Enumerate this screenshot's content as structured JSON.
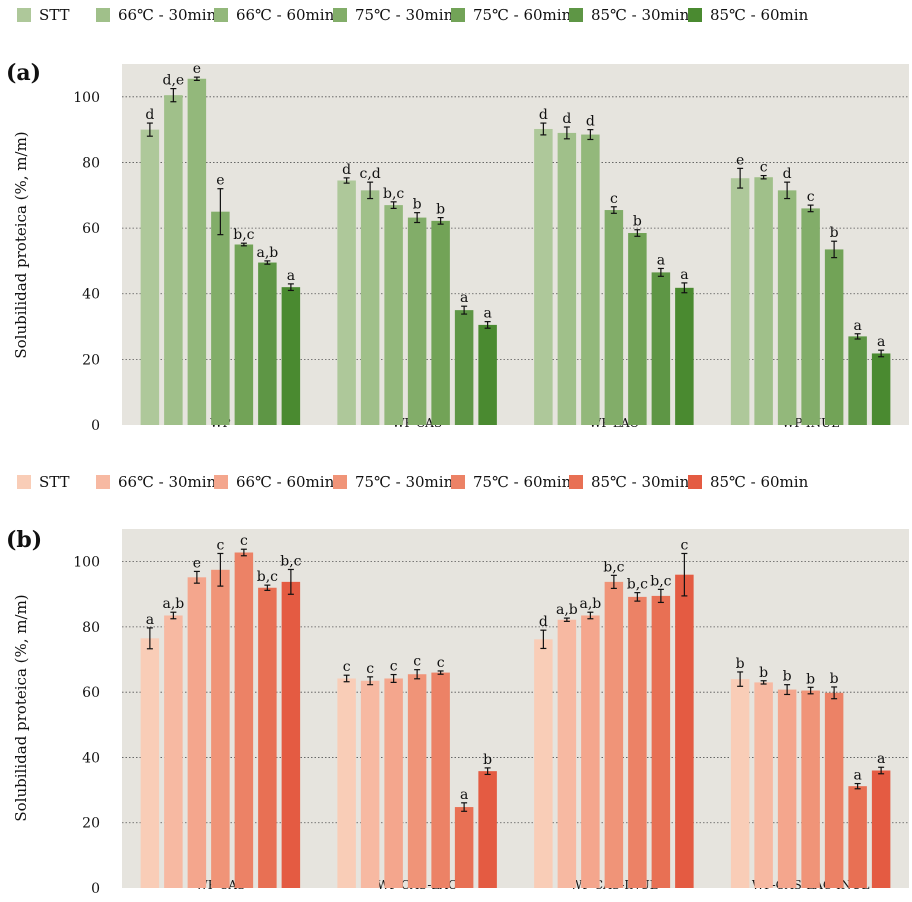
{
  "chart_data": [
    {
      "type": "bar",
      "panel_label": "(a)",
      "ylabel": "Solubilidad proteica (%, m/m)",
      "ylim": [
        0,
        110
      ],
      "yticks": [
        0,
        20,
        40,
        60,
        80,
        100
      ],
      "grid": "horizontal dotted",
      "legend_placement": "top",
      "categories": [
        "WP",
        "WP-CAS",
        "WP-LAC",
        "WP-INUL"
      ],
      "series": [
        {
          "name": "STT",
          "color": "#aec89a",
          "values": [
            90,
            74.5,
            90.2,
            75.2
          ],
          "errors": [
            2,
            0.8,
            1.8,
            3
          ],
          "labels": [
            "d",
            "d",
            "d",
            "e"
          ]
        },
        {
          "name": "66℃ - 30min",
          "color": "#a0c08a",
          "values": [
            100.5,
            71.5,
            89,
            75.5
          ],
          "errors": [
            2,
            2.5,
            1.8,
            0.5
          ],
          "labels": [
            "d,e",
            "c,d",
            "d",
            "c"
          ]
        },
        {
          "name": "66℃ - 60min",
          "color": "#93b87b",
          "values": [
            105.5,
            67,
            88.5,
            71.5
          ],
          "errors": [
            0.5,
            1,
            1.5,
            2.5
          ],
          "labels": [
            "e",
            "b,c",
            "d",
            "d"
          ]
        },
        {
          "name": "75℃ - 30min",
          "color": "#82ad69",
          "values": [
            65,
            63.2,
            65.5,
            66
          ],
          "errors": [
            7,
            1.5,
            1,
            1
          ],
          "labels": [
            "e",
            "b",
            "c",
            "c"
          ]
        },
        {
          "name": "75℃ - 60min",
          "color": "#72a357",
          "values": [
            55,
            62.2,
            58.5,
            53.5
          ],
          "errors": [
            0.4,
            1,
            1,
            2.5
          ],
          "labels": [
            "b,c",
            "b",
            "b",
            "b"
          ]
        },
        {
          "name": "85℃ - 30min",
          "color": "#5e9645",
          "values": [
            49.5,
            35,
            46.5,
            27
          ],
          "errors": [
            0.5,
            1.2,
            1.2,
            0.8
          ],
          "labels": [
            "a,b",
            "a",
            "a",
            "a"
          ]
        },
        {
          "name": "85℃ - 60min",
          "color": "#4a8a30",
          "values": [
            42,
            30.5,
            41.8,
            21.8
          ],
          "errors": [
            1,
            1,
            1.5,
            1
          ],
          "labels": [
            "a",
            "a",
            "a",
            "a"
          ]
        }
      ]
    },
    {
      "type": "bar",
      "panel_label": "(b)",
      "ylabel": "Solubilidad proteica (%, m/m)",
      "ylim": [
        0,
        110
      ],
      "yticks": [
        0,
        20,
        40,
        60,
        80,
        100
      ],
      "grid": "horizontal dotted",
      "legend_placement": "top",
      "categories": [
        "WP-CAS",
        "WP-CAS-LAC",
        "WP-CAS-INUL",
        "WP-CAS-LAC-INUL"
      ],
      "series": [
        {
          "name": "STT",
          "color": "#f9cdb7",
          "values": [
            76.5,
            64.2,
            76.2,
            64
          ],
          "errors": [
            3.2,
            1,
            2.8,
            2.2
          ],
          "labels": [
            "a",
            "c",
            "d",
            "b"
          ]
        },
        {
          "name": "66℃ - 30min",
          "color": "#f7b9a2",
          "values": [
            83.5,
            63.5,
            82.2,
            63
          ],
          "errors": [
            1,
            1.2,
            0.5,
            0.5
          ],
          "labels": [
            "a,b",
            "c",
            "a,b",
            "b"
          ]
        },
        {
          "name": "66℃ - 60min",
          "color": "#f4a68d",
          "values": [
            95.2,
            64.2,
            83.5,
            60.8
          ],
          "errors": [
            1.8,
            1.2,
            1,
            1.5
          ],
          "labels": [
            "e",
            "c",
            "a,b",
            "b"
          ]
        },
        {
          "name": "75℃ - 30min",
          "color": "#f09478",
          "values": [
            97.5,
            65.5,
            93.8,
            60.5
          ],
          "errors": [
            5,
            1.4,
            2,
            1
          ],
          "labels": [
            "c",
            "c",
            "b,c",
            "b"
          ]
        },
        {
          "name": "75℃ - 60min",
          "color": "#ec8266",
          "values": [
            102.8,
            66,
            89.2,
            59.8
          ],
          "errors": [
            1,
            0.5,
            1.3,
            1.8
          ],
          "labels": [
            "c",
            "c",
            "b,c",
            "b"
          ]
        },
        {
          "name": "85℃ - 30min",
          "color": "#e87054",
          "values": [
            92,
            24.8,
            89.5,
            31.2
          ],
          "errors": [
            0.8,
            1.3,
            2,
            0.8
          ],
          "labels": [
            "b,c",
            "a",
            "b,c",
            "a"
          ]
        },
        {
          "name": "85℃ - 60min",
          "color": "#e45b42",
          "values": [
            93.8,
            35.8,
            96,
            36
          ],
          "errors": [
            3.8,
            1,
            6.5,
            1
          ],
          "labels": [
            "b,c",
            "b",
            "c",
            "a"
          ]
        }
      ]
    }
  ]
}
